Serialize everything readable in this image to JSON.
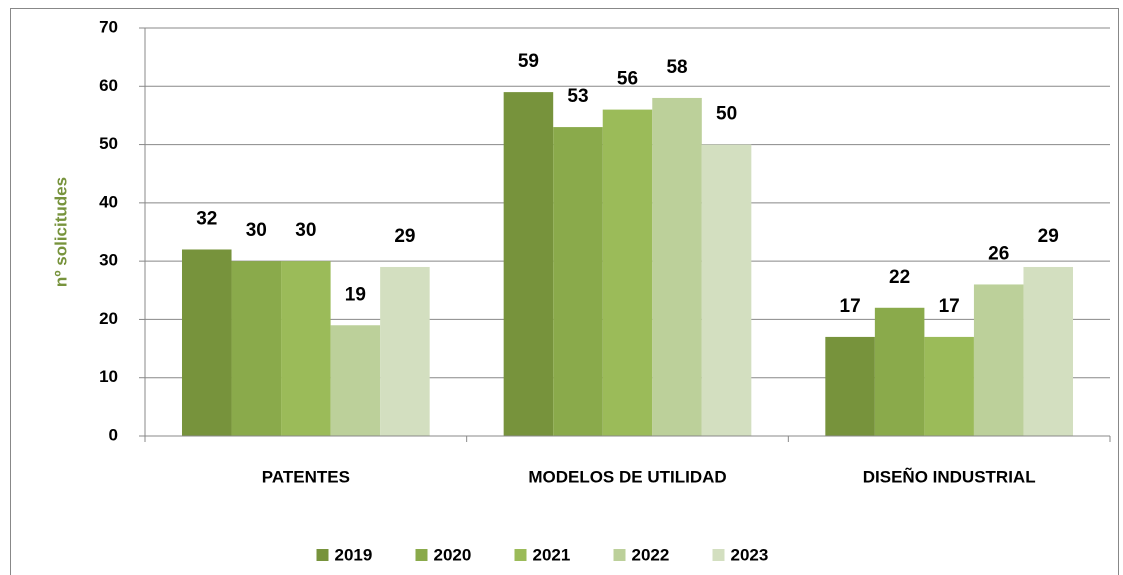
{
  "chart_data": {
    "type": "bar",
    "categories": [
      "PATENTES",
      "MODELOS DE UTILIDAD",
      "DISEÑO INDUSTRIAL"
    ],
    "series": [
      {
        "name": "2019",
        "color": "#77933c",
        "values": [
          32,
          59,
          17
        ]
      },
      {
        "name": "2020",
        "color": "#8aaa4b",
        "values": [
          30,
          53,
          22
        ]
      },
      {
        "name": "2021",
        "color": "#9bbb59",
        "values": [
          30,
          56,
          17
        ]
      },
      {
        "name": "2022",
        "color": "#bcd09a",
        "values": [
          19,
          58,
          26
        ]
      },
      {
        "name": "2023",
        "color": "#d3dfc0",
        "values": [
          29,
          50,
          29
        ]
      }
    ],
    "y_label": "nº solicitudes",
    "ylim": [
      0,
      70
    ],
    "yticks": [
      0,
      10,
      20,
      30,
      40,
      50,
      60,
      70
    ],
    "grid": true,
    "legend": "bottom"
  }
}
